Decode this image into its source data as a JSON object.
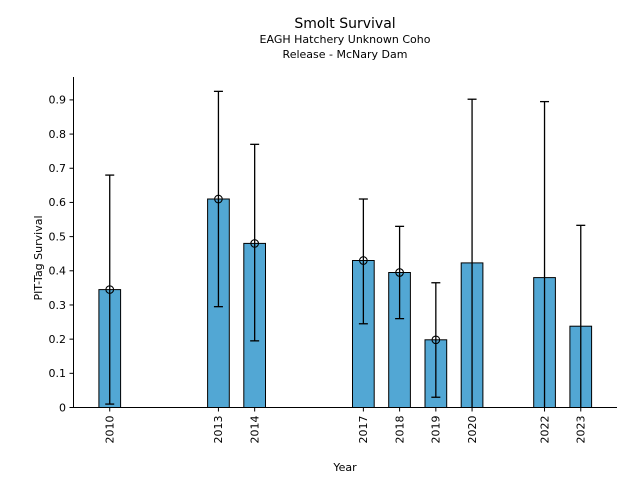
{
  "chart_data": {
    "type": "bar",
    "title": "Smolt Survival",
    "subtitle1": "EAGH Hatchery Unknown Coho",
    "subtitle2": "Release - McNary Dam",
    "xlabel": "Year",
    "ylabel": "PIT-Tag Survival",
    "xlim": [
      2009,
      2024
    ],
    "ylim": [
      0,
      0.967
    ],
    "grid": false,
    "legend": "none",
    "bar_color": "#52A7D4",
    "edge_color": "#000000",
    "error_color": "#000000",
    "bar_width_years": 0.6,
    "ytick_values": [
      0,
      0.1,
      0.2,
      0.3,
      0.4,
      0.5,
      0.6,
      0.7,
      0.8,
      0.9
    ],
    "ytick_labels": [
      "0",
      "0.1",
      "0.2",
      "0.3",
      "0.4",
      "0.5",
      "0.6",
      "0.7",
      "0.8",
      "0.9"
    ],
    "categories": [
      "2010",
      "2013",
      "2014",
      "2017",
      "2018",
      "2019",
      "2020",
      "2022",
      "2023"
    ],
    "x": [
      2010,
      2013,
      2014,
      2017,
      2018,
      2019,
      2020,
      2022,
      2023
    ],
    "values": [
      0.345,
      0.61,
      0.48,
      0.43,
      0.395,
      0.198,
      0.423,
      0.38,
      0.238
    ],
    "error_low": [
      0.01,
      0.295,
      0.195,
      0.245,
      0.26,
      0.03,
      0,
      0,
      0
    ],
    "error_high": [
      0.68,
      0.925,
      0.77,
      0.61,
      0.53,
      0.365,
      0.902,
      0.895,
      0.533
    ],
    "marker_on_bar": [
      true,
      true,
      true,
      true,
      true,
      true,
      false,
      false,
      false
    ],
    "lower_cap": [
      true,
      true,
      true,
      true,
      true,
      true,
      false,
      false,
      false
    ]
  }
}
